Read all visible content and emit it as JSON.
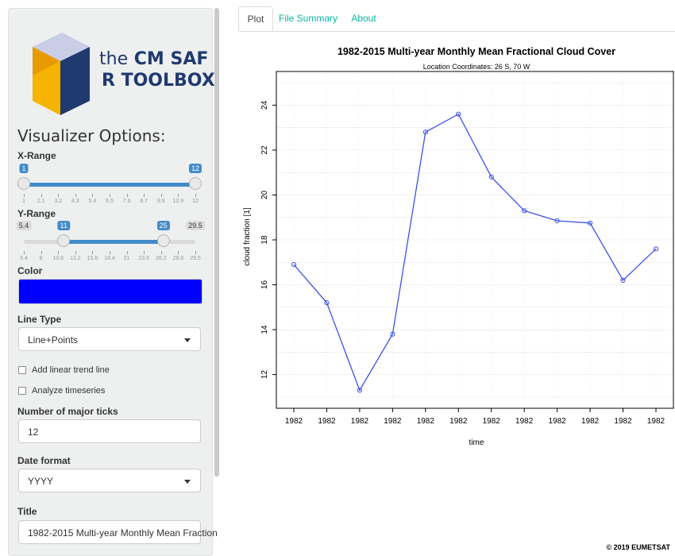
{
  "sidebar": {
    "logo": {
      "line1_light": "the",
      "line1_bold": "CM SAF",
      "line2": "R TOOLBOX"
    },
    "title": "Visualizer Options:",
    "x_range": {
      "label": "X-Range",
      "min": 1,
      "max": 12,
      "from": 1,
      "to": 12,
      "from_label": "1",
      "to_label": "12",
      "grid": [
        "1",
        "2.1",
        "3.2",
        "4.3",
        "5.4",
        "6.5",
        "7.6",
        "8.7",
        "9.8",
        "10.9",
        "12"
      ]
    },
    "y_range": {
      "label": "Y-Range",
      "min": 5.4,
      "max": 29.5,
      "from": 11,
      "to": 25,
      "min_label": "5.4",
      "max_label": "29.5",
      "from_label": "11",
      "to_label": "25",
      "grid": [
        "5.4",
        "8",
        "10.6",
        "13.2",
        "15.8",
        "18.4",
        "21",
        "23.6",
        "26.2",
        "28.8",
        "29.5"
      ]
    },
    "color": {
      "label": "Color",
      "value": "#0000ff"
    },
    "line_type": {
      "label": "Line Type",
      "value": "Line+Points"
    },
    "trend_checkbox": {
      "label": "Add linear trend line",
      "checked": false
    },
    "analyze_checkbox": {
      "label": "Analyze timeseries",
      "checked": false
    },
    "ticks": {
      "label": "Number of major ticks",
      "value": "12"
    },
    "date_format": {
      "label": "Date format",
      "value": "YYYY"
    },
    "title_field": {
      "label": "Title",
      "value": "1982-2015 Multi-year Monthly Mean Fraction"
    }
  },
  "tabs": [
    {
      "label": "Plot",
      "active": true
    },
    {
      "label": "File Summary",
      "active": false
    },
    {
      "label": "About",
      "active": false
    }
  ],
  "chart_data": {
    "type": "line",
    "title": "1982-2015 Multi-year Monthly Mean Fractional Cloud Cover",
    "subtitle": "Location Coordinates: 26 S, 70 W",
    "xlabel": "time",
    "ylabel": "cloud fraction [1]",
    "categories": [
      "1982",
      "1982",
      "1982",
      "1982",
      "1982",
      "1982",
      "1982",
      "1982",
      "1982",
      "1982",
      "1982",
      "1982"
    ],
    "values": [
      16.9,
      15.2,
      11.3,
      13.8,
      22.8,
      23.6,
      20.8,
      19.3,
      18.85,
      18.75,
      16.2,
      17.6
    ],
    "yticks": [
      12,
      14,
      16,
      18,
      20,
      22,
      24
    ],
    "ylim": [
      10.5,
      25.5
    ],
    "grid": true,
    "color": "#0000ff",
    "line_color": "#3c53e6"
  },
  "footer": "© 2019 EUMETSAT"
}
